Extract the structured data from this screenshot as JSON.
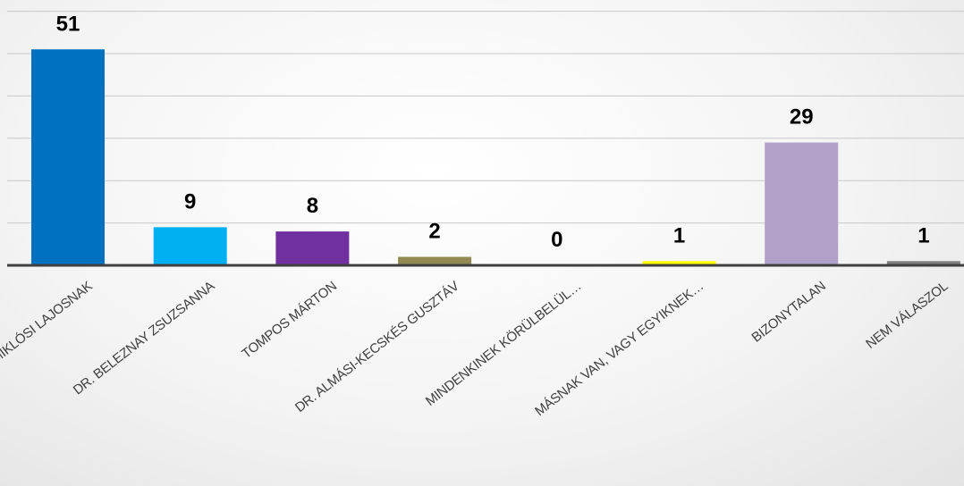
{
  "chart_data": {
    "type": "bar",
    "categories": [
      "KUNSZENTMIKLÓSI LAJOSNAK",
      "DR. BELEZNAY ZSUZSANNA",
      "TOMPOS MÁRTON",
      "DR. ALMÁSI-KECSKÉS GUSZTÁV",
      "MINDENKINEK KÖRÜLBELÜL…",
      "MÁSNAK VAN, VAGY EGYIKNEK…",
      "BIZONYTALAN",
      "NEM VÁLASZOL"
    ],
    "values": [
      51,
      9,
      8,
      2,
      0,
      1,
      29,
      1
    ],
    "colors": [
      "#0070c0",
      "#00b0f0",
      "#7030a0",
      "#938953",
      "#c9a400",
      "#ffff00",
      "#b1a0c7",
      "#7f7f7f"
    ],
    "ylim": [
      0,
      60
    ],
    "grid": true,
    "data_labels": true
  }
}
